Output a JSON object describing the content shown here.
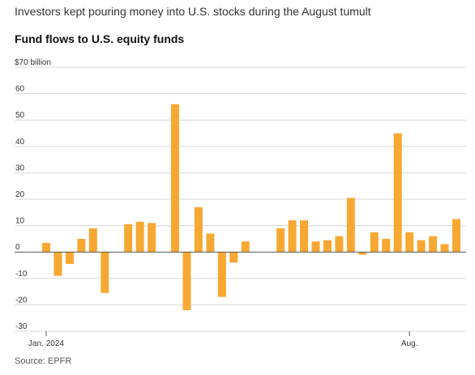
{
  "headline": "Investors kept pouring money into U.S. stocks during the August tumult",
  "source": "Source: EPFR",
  "colors": {
    "bar": "#F7A832",
    "grid": "#d8d8d8",
    "zero": "#555555"
  },
  "chart_data": {
    "type": "bar",
    "title": "Fund flows to U.S. equity funds",
    "ylabel": "$70 billion",
    "ylim": [
      -30,
      70
    ],
    "yticks": [
      {
        "value": 70,
        "label": ""
      },
      {
        "value": 60,
        "label": "60"
      },
      {
        "value": 50,
        "label": "50"
      },
      {
        "value": 40,
        "label": "40"
      },
      {
        "value": 30,
        "label": "30"
      },
      {
        "value": 20,
        "label": "20"
      },
      {
        "value": 10,
        "label": "10"
      },
      {
        "value": 0,
        "label": "0"
      },
      {
        "value": -10,
        "label": "-10"
      },
      {
        "value": -20,
        "label": "-20"
      },
      {
        "value": -30,
        "label": "-30"
      }
    ],
    "xticks": [
      {
        "index": 0,
        "label": "Jan. 2024"
      },
      {
        "index": 31,
        "label": "Aug."
      }
    ],
    "grid": true,
    "values": [
      3.5,
      -9,
      -4.5,
      5,
      9,
      -15.5,
      0,
      10.5,
      11.5,
      11,
      0,
      56,
      -22,
      17,
      7,
      -17,
      -4,
      4,
      0,
      0,
      9,
      12,
      12,
      4,
      4.5,
      6,
      20.5,
      -1,
      7.5,
      5,
      45,
      7.5,
      4.5,
      6,
      3,
      12.5
    ]
  }
}
